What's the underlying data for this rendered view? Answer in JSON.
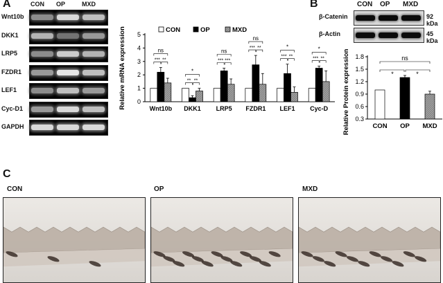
{
  "panelA": {
    "letter": "A",
    "lanes": [
      "CON",
      "OP",
      "MXD"
    ],
    "gels": [
      {
        "label": "Wnt10b",
        "intensities": [
          0.55,
          0.85,
          0.75
        ]
      },
      {
        "label": "DKK1",
        "intensities": [
          0.7,
          0.45,
          0.6
        ]
      },
      {
        "label": "LRP5",
        "intensities": [
          0.55,
          0.8,
          0.7
        ]
      },
      {
        "label": "FZDR1",
        "intensities": [
          0.6,
          0.9,
          0.75
        ]
      },
      {
        "label": "LEF1",
        "intensities": [
          0.55,
          0.75,
          0.6
        ]
      },
      {
        "label": "Cyc-D1",
        "intensities": [
          0.6,
          0.85,
          0.75
        ]
      },
      {
        "label": "GAPDH",
        "intensities": [
          0.85,
          0.85,
          0.85
        ]
      }
    ]
  },
  "panelB": {
    "letter": "B",
    "lanes": [
      "CON",
      "OP",
      "MXD"
    ],
    "blots": [
      {
        "label": "β-Catenin",
        "size": "92 kDa",
        "intensities": [
          0.7,
          0.75,
          0.7
        ]
      },
      {
        "label": "β-Actin",
        "size": "45 kDa",
        "intensities": [
          0.7,
          0.75,
          0.7
        ]
      }
    ]
  },
  "panelC": {
    "letter": "C",
    "images": [
      {
        "label": "CON",
        "density": 0.2
      },
      {
        "label": "OP",
        "density": 0.9
      },
      {
        "label": "MXD",
        "density": 0.75
      }
    ]
  },
  "colors": {
    "con": "#ffffff",
    "op": "#000000",
    "mxd": "#a0a0a0",
    "mxd_hatch": "#6a6a6a"
  },
  "chart_data": [
    {
      "type": "bar",
      "ylabel": "Relative mRNA expression",
      "ylim": [
        0,
        5
      ],
      "yticks": [
        "0",
        "1",
        "2",
        "3",
        "4",
        "5"
      ],
      "categories": [
        "Wnt10b",
        "DKK1",
        "LRP5",
        "FZDR1",
        "LEF1",
        "Cyc-D"
      ],
      "legend": [
        "CON",
        "OP",
        "MXD"
      ],
      "legend_position": "top",
      "series": [
        {
          "name": "CON",
          "values": [
            1.0,
            1.0,
            1.0,
            1.0,
            1.0,
            1.0
          ],
          "errors": [
            0,
            0,
            0,
            0,
            0,
            0
          ]
        },
        {
          "name": "OP",
          "values": [
            2.2,
            0.3,
            2.3,
            2.75,
            2.1,
            2.5
          ],
          "errors": [
            0.35,
            0.15,
            0.2,
            0.7,
            0.7,
            0.15
          ]
        },
        {
          "name": "MXD",
          "values": [
            1.4,
            0.8,
            1.3,
            1.3,
            0.7,
            1.5
          ],
          "errors": [
            0.35,
            0.2,
            0.4,
            0.8,
            0.4,
            0.8
          ]
        }
      ],
      "significance": [
        {
          "top": "ns",
          "left": "***",
          "right": "**"
        },
        {
          "top": "*",
          "left": "**",
          "right": "**"
        },
        {
          "top": "ns",
          "left": "***",
          "right": "***"
        },
        {
          "top": "ns",
          "left": "***",
          "right": "**"
        },
        {
          "top": "*",
          "left": "***",
          "right": "**"
        },
        {
          "top": "*",
          "left": "***",
          "right": "**"
        }
      ]
    },
    {
      "type": "bar",
      "ylabel": "Relative Protein expression",
      "ylim": [
        0.3,
        1.8
      ],
      "yticks": [
        "0.3",
        "0.6",
        "0.9",
        "1.2",
        "1.5",
        "1.8"
      ],
      "categories": [
        "CON",
        "OP",
        "MXD"
      ],
      "values": [
        1.0,
        1.3,
        0.9
      ],
      "errors": [
        0,
        0.05,
        0.07
      ],
      "significance": {
        "top": "ns",
        "left": "*",
        "right": "*"
      }
    }
  ]
}
